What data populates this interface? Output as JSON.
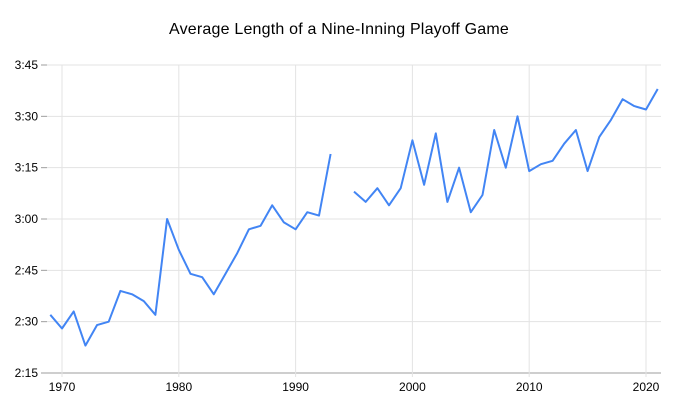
{
  "chart_data": {
    "type": "line",
    "title": "Average Length of a Nine-Inning Playoff Game",
    "xlabel": "",
    "ylabel": "",
    "legend": "none",
    "grid": true,
    "x_axis": {
      "tick_labels": [
        "1970",
        "1980",
        "1990",
        "2000",
        "2010",
        "2020"
      ],
      "tick_years": [
        1970,
        1980,
        1990,
        2000,
        2010,
        2020
      ],
      "range_years": [
        1968.7,
        2021.3
      ]
    },
    "y_axis": {
      "tick_labels": [
        "3:45",
        "3:30",
        "3:15",
        "3:00",
        "2:45",
        "2:30",
        "2:15"
      ],
      "range": [
        "2:15",
        "3:45"
      ],
      "step_minutes": 15,
      "unit": "game length (h:mm)"
    },
    "gap_years": [
      1994
    ],
    "series": [
      {
        "name": "average-nine-inning-playoff-game-length",
        "color": "#4285f4",
        "points": [
          [
            1969,
            "2:32"
          ],
          [
            1970,
            "2:28"
          ],
          [
            1971,
            "2:33"
          ],
          [
            1972,
            "2:23"
          ],
          [
            1973,
            "2:29"
          ],
          [
            1974,
            "2:30"
          ],
          [
            1975,
            "2:39"
          ],
          [
            1976,
            "2:38"
          ],
          [
            1977,
            "2:36"
          ],
          [
            1978,
            "2:32"
          ],
          [
            1979,
            "3:00"
          ],
          [
            1980,
            "2:51"
          ],
          [
            1981,
            "2:44"
          ],
          [
            1982,
            "2:43"
          ],
          [
            1983,
            "2:38"
          ],
          [
            1984,
            "2:44"
          ],
          [
            1985,
            "2:50"
          ],
          [
            1986,
            "2:57"
          ],
          [
            1987,
            "2:58"
          ],
          [
            1988,
            "3:04"
          ],
          [
            1989,
            "2:59"
          ],
          [
            1990,
            "2:57"
          ],
          [
            1991,
            "3:02"
          ],
          [
            1992,
            "3:01"
          ],
          [
            1993,
            "3:19"
          ],
          [
            1994,
            null
          ],
          [
            1995,
            "3:08"
          ],
          [
            1996,
            "3:05"
          ],
          [
            1997,
            "3:09"
          ],
          [
            1998,
            "3:04"
          ],
          [
            1999,
            "3:09"
          ],
          [
            2000,
            "3:23"
          ],
          [
            2001,
            "3:10"
          ],
          [
            2002,
            "3:25"
          ],
          [
            2003,
            "3:05"
          ],
          [
            2004,
            "3:15"
          ],
          [
            2005,
            "3:02"
          ],
          [
            2006,
            "3:07"
          ],
          [
            2007,
            "3:26"
          ],
          [
            2008,
            "3:15"
          ],
          [
            2009,
            "3:30"
          ],
          [
            2010,
            "3:14"
          ],
          [
            2011,
            "3:16"
          ],
          [
            2012,
            "3:17"
          ],
          [
            2013,
            "3:22"
          ],
          [
            2014,
            "3:26"
          ],
          [
            2015,
            "3:14"
          ],
          [
            2016,
            "3:24"
          ],
          [
            2017,
            "3:29"
          ],
          [
            2018,
            "3:35"
          ],
          [
            2019,
            "3:33"
          ],
          [
            2020,
            "3:32"
          ],
          [
            2021,
            "3:38"
          ]
        ]
      }
    ],
    "colors": {
      "line": "#4285f4",
      "gridline": "#e3e3e3",
      "axis_line": "#9e9e9e",
      "tick_label": "#000000",
      "title": "#000000",
      "background": "#ffffff"
    }
  }
}
